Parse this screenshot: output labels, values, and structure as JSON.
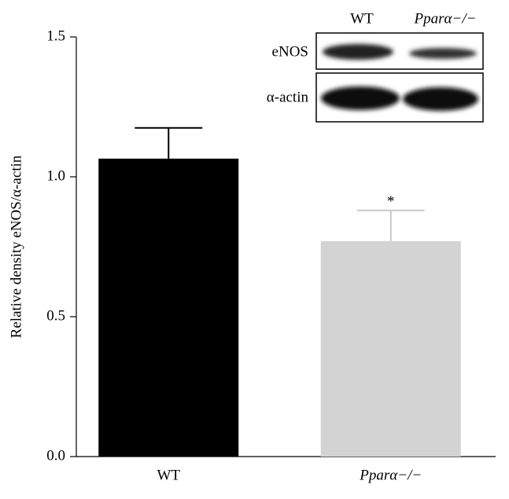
{
  "chart_data": {
    "type": "bar",
    "y_label": "Relative density eNOS/α-actin",
    "categories": [
      "WT",
      "Pparα−/−"
    ],
    "values": [
      1.065,
      0.77
    ],
    "errors": [
      0.11,
      0.11
    ],
    "colors": [
      "#000000",
      "#d3d3d3"
    ],
    "ylim": [
      0,
      1.5
    ],
    "yticks": [
      {
        "value": 0,
        "label": "0.0"
      },
      0.5,
      {
        "value": 1,
        "label": "1.0"
      },
      1.5
    ],
    "annotations": [
      {
        "text": "*",
        "category_index": 1
      }
    ],
    "inset": {
      "columns": [
        "WT",
        "Pparα−/−"
      ],
      "rows": [
        "eNOS",
        "α-actin"
      ]
    }
  }
}
